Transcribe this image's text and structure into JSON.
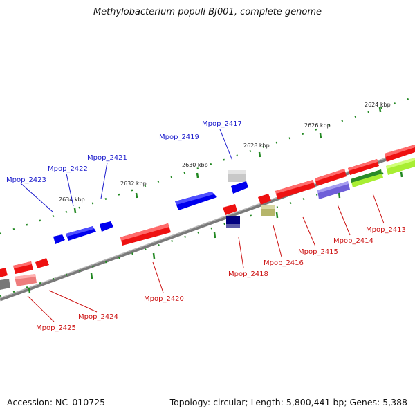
{
  "title": "Methylobacterium populi BJ001, complete genome",
  "accession": "Accession: NC_010725",
  "topology": "Topology: circular; Length: 5,800,441 bp; Genes: 5,388",
  "tick_labels": [
    "2624 kbp",
    "2626 kbp",
    "2628 kbp",
    "2630 kbp",
    "2632 kbp",
    "2634 kbp"
  ],
  "genes_top": [
    "Mpop_2417",
    "Mpop_2419",
    "Mpop_2421",
    "Mpop_2422",
    "Mpop_2423"
  ],
  "genes_bottom": [
    "Mpop_2413",
    "Mpop_2414",
    "Mpop_2415",
    "Mpop_2416",
    "Mpop_2418",
    "Mpop_2420",
    "Mpop_2424",
    "Mpop_2425"
  ],
  "colors": {
    "backbone": "#808080",
    "forward": "#0000ee",
    "reverse": "#ee1111",
    "tick": "#228822",
    "navy": "#000080",
    "olive": "#b5b56a",
    "purple": "#7a6bdc",
    "lime": "#a8ee33",
    "green": "#339933",
    "gray": "#c0c0c0",
    "pink": "#ee8888"
  }
}
